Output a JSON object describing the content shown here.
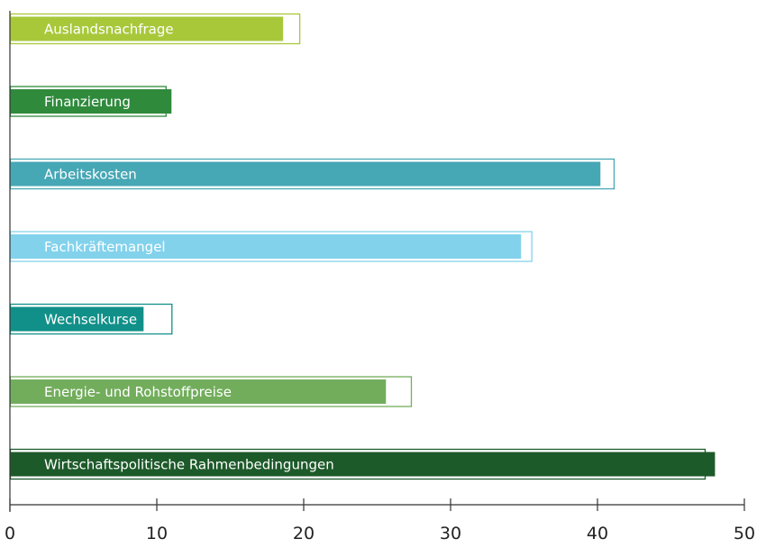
{
  "chart_data": {
    "type": "bar",
    "orientation": "horizontal",
    "title": "",
    "xlabel": "",
    "ylabel": "",
    "xlim": [
      0,
      50
    ],
    "xticks": [
      0,
      10,
      20,
      30,
      40,
      50
    ],
    "grid": false,
    "legend": "none",
    "categories": [
      "Auslandsnachfrage",
      "Finanzierung",
      "Arbeitskosten",
      "Fachkräftemangel",
      "Wechselkurse",
      "Energie- und Rohstoffpreise",
      "Wirtschaftspolitische Rahmenbedingungen"
    ],
    "series": [
      {
        "values": [
          18.6,
          11.0,
          40.2,
          34.8,
          9.1,
          25.6,
          48.0
        ]
      },
      {
        "values": [
          19.7,
          10.6,
          41.1,
          35.5,
          11.0,
          27.3,
          47.3
        ]
      }
    ],
    "colors": [
      "#a8c83a",
      "#2f8a3c",
      "#46a7b5",
      "#82d2ec",
      "#119089",
      "#72ad5c",
      "#1d5a2a"
    ],
    "axis_color": "#333333"
  }
}
